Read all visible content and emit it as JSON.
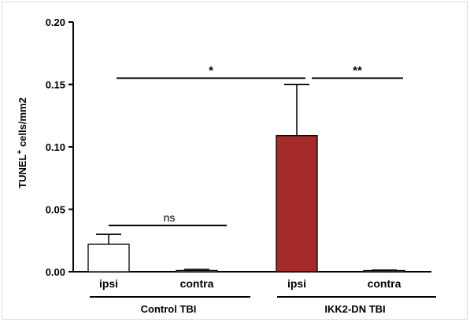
{
  "chart_data": {
    "type": "bar",
    "ylabel": "TUNEL",
    "ylabel_sup": "+",
    "ylabel_rest": " cells/mm2",
    "ylim": [
      0,
      0.2
    ],
    "yticks": [
      0.0,
      0.05,
      0.1,
      0.15,
      0.2
    ],
    "ytick_labels": [
      "0.00",
      "0.05",
      "0.10",
      "0.15",
      "0.20"
    ],
    "categories": [
      "ipsi",
      "contra",
      "ipsi",
      "contra"
    ],
    "groups": [
      {
        "label": "Control TBI",
        "bars": [
          0,
          1
        ]
      },
      {
        "label": "IKK2-DN TBI",
        "bars": [
          2,
          3
        ]
      }
    ],
    "values": [
      0.022,
      0.001,
      0.109,
      0.0005
    ],
    "errors": [
      0.008,
      0.001,
      0.041,
      0.0008
    ],
    "bar_fills": [
      "#ffffff",
      "#ffffff",
      "#a52a2a",
      "#ffffff"
    ],
    "significance": [
      {
        "from": 0,
        "to": 1,
        "label": "ns",
        "y": 0.037
      },
      {
        "from": 0,
        "to": 2,
        "label": "*",
        "y": 0.155
      },
      {
        "from": 2,
        "to": 3,
        "label": "**",
        "y": 0.155
      }
    ]
  }
}
